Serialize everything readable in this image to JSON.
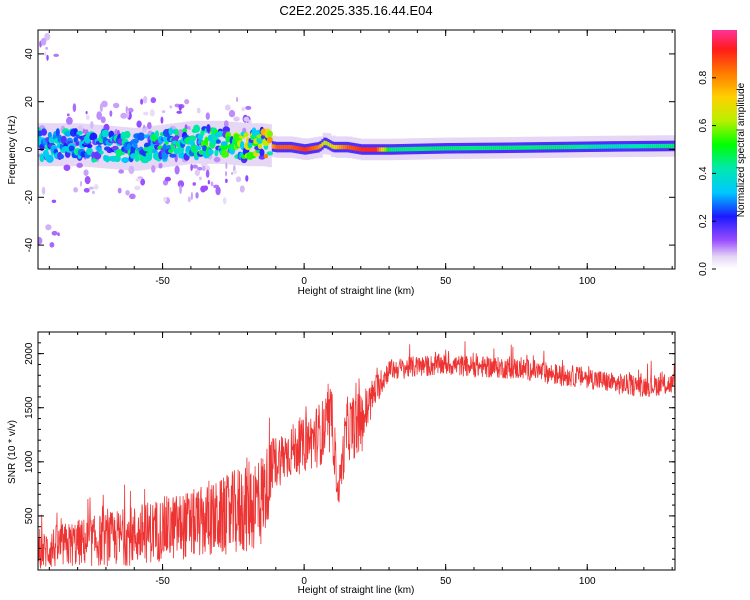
{
  "title": "C2E2.2025.335.16.44.E04",
  "chart_data": [
    {
      "type": "heatmap",
      "title": "",
      "xlabel": "Height of straight line (km)",
      "ylabel": "Frequency (Hz)",
      "xlim": [
        -94,
        131
      ],
      "ylim": [
        -50,
        50
      ],
      "xticks": [
        -50,
        0,
        50,
        100
      ],
      "yticks": [
        -40,
        -20,
        0,
        20,
        40
      ],
      "colorbar": {
        "label": "Normalized spectral amplitude",
        "range": [
          0.0,
          1.0
        ],
        "ticks": [
          "0.0",
          "0.2",
          "0.4",
          "0.6",
          "0.8"
        ],
        "colormap": "rainbow"
      },
      "ridge_description": "spectral energy concentrated near 0 Hz; diffuse scattered returns below about -15 km, narrow coherent line above 0 km",
      "ridge": {
        "x": [
          -94,
          -80,
          -60,
          -40,
          -30,
          -20,
          -15,
          -10,
          -5,
          0,
          5,
          7,
          10,
          15,
          20,
          25,
          30,
          50,
          70,
          90,
          110,
          131
        ],
        "center_hz": [
          2,
          2,
          0,
          3,
          3,
          2,
          2,
          1,
          1,
          0,
          1,
          3,
          1,
          1,
          0,
          0,
          0,
          0.5,
          0.7,
          1,
          1.3,
          1.5
        ],
        "peak_amplitude": [
          0.3,
          0.3,
          0.35,
          0.35,
          0.45,
          0.55,
          0.6,
          0.85,
          0.85,
          0.9,
          0.8,
          0.6,
          0.7,
          0.85,
          0.9,
          0.9,
          0.45,
          0.45,
          0.45,
          0.45,
          0.4,
          0.45
        ]
      }
    },
    {
      "type": "line",
      "title": "",
      "xlabel": "Height of straight line (km)",
      "ylabel": "SNR (10 * v/v)",
      "xlim": [
        -94,
        131
      ],
      "ylim": [
        0,
        2200
      ],
      "xticks": [
        -50,
        0,
        50,
        100
      ],
      "yticks": [
        500,
        1000,
        1500,
        2000
      ],
      "color": "#ee3333",
      "series": [
        {
          "x": [
            -94,
            -90,
            -80,
            -70,
            -60,
            -50,
            -40,
            -30,
            -25,
            -20,
            -15,
            -10,
            -5,
            0,
            5,
            10,
            12,
            15,
            20,
            25,
            30,
            40,
            50,
            60,
            70,
            80,
            90,
            100,
            110,
            120,
            131
          ],
          "mean": [
            150,
            200,
            250,
            280,
            320,
            380,
            420,
            480,
            520,
            600,
            650,
            1000,
            1100,
            1150,
            1250,
            1350,
            700,
            1300,
            1350,
            1650,
            1850,
            1880,
            1900,
            1880,
            1870,
            1850,
            1800,
            1780,
            1720,
            1700,
            1720
          ],
          "spread": [
            150,
            200,
            220,
            250,
            280,
            300,
            320,
            350,
            400,
            450,
            450,
            250,
            250,
            250,
            300,
            300,
            150,
            300,
            300,
            150,
            100,
            100,
            100,
            100,
            100,
            100,
            100,
            100,
            100,
            100,
            100
          ]
        }
      ]
    }
  ]
}
